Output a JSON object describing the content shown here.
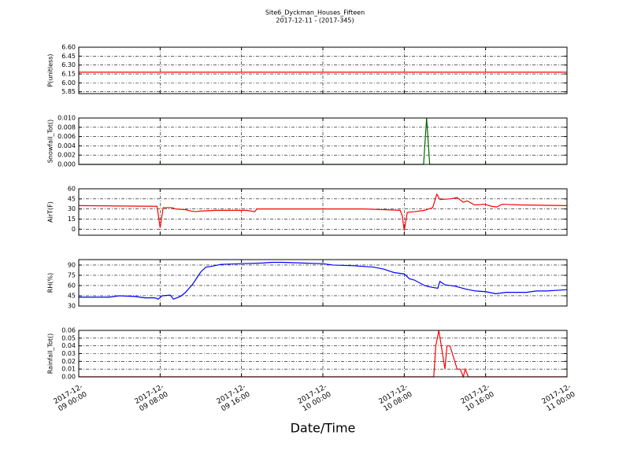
{
  "chart_data": [
    {
      "type": "line",
      "title": "Site6_Dyckman_Houses_Fifteen",
      "subtitle": "2017-12-11 - (2017-345)",
      "ylabel": "P(unitless)",
      "color": "#ff0000",
      "grid": true,
      "x": [
        "2017-12-09 00:00",
        "2017-12-11 00:00"
      ],
      "values": [
        6.18,
        6.18
      ],
      "ylim": [
        5.82,
        6.6
      ],
      "yticks": [
        {
          "value": 5.85,
          "label": "5.85"
        },
        {
          "value": 6.0,
          "label": "6.00"
        },
        {
          "value": 6.15,
          "label": "6.15"
        },
        {
          "value": 6.3,
          "label": "6.30"
        },
        {
          "value": 6.45,
          "label": "6.45"
        },
        {
          "value": 6.6,
          "label": "6.60"
        }
      ]
    },
    {
      "type": "line",
      "ylabel": "Snowfall_Tot()",
      "color": "#006400",
      "grid": true,
      "x": [
        "2017-12-09 00:00",
        "2017-12-10 09:54",
        "2017-12-10 10:12",
        "2017-12-10 10:30",
        "2017-12-11 00:00"
      ],
      "values": [
        0,
        0,
        0.01,
        0,
        0
      ],
      "ylim": [
        0,
        0.01
      ],
      "yticks": [
        {
          "value": 0,
          "label": "0.000"
        },
        0.002,
        0.004,
        0.006,
        0.008,
        {
          "value": 0.01,
          "label": "0.010"
        }
      ]
    },
    {
      "type": "line",
      "ylabel": "AirT(F)",
      "color": "#ff0000",
      "grid": true,
      "x": [
        "2017-12-09 00:00",
        "2017-12-09 07:42",
        "2017-12-09 08:00",
        "2017-12-09 08:18",
        "2017-12-09 09:12",
        "2017-12-09 09:30",
        "2017-12-09 10:30",
        "2017-12-09 11:00",
        "2017-12-09 11:30",
        "2017-12-09 12:00",
        "2017-12-09 13:30",
        "2017-12-09 15:00",
        "2017-12-09 16:30",
        "2017-12-09 17:18",
        "2017-12-09 17:30",
        "2017-12-09 20:00",
        "2017-12-10 00:00",
        "2017-12-10 04:00",
        "2017-12-10 06:00",
        "2017-12-10 07:36",
        "2017-12-10 07:48",
        "2017-12-10 08:00",
        "2017-12-10 08:18",
        "2017-12-10 09:00",
        "2017-12-10 10:00",
        "2017-12-10 10:48",
        "2017-12-10 11:12",
        "2017-12-10 11:30",
        "2017-12-10 12:30",
        "2017-12-10 13:12",
        "2017-12-10 13:48",
        "2017-12-10 14:12",
        "2017-12-10 14:54",
        "2017-12-10 15:54",
        "2017-12-10 16:36",
        "2017-12-10 17:06",
        "2017-12-10 17:36",
        "2017-12-10 19:24",
        "2017-12-11 00:00"
      ],
      "values": [
        35,
        34,
        2,
        32,
        32,
        30,
        29,
        27,
        26,
        27,
        28,
        28,
        28,
        26,
        30,
        30,
        30,
        30,
        29,
        28,
        20,
        -2,
        25,
        26,
        28,
        32,
        52,
        44,
        45,
        47,
        40,
        42,
        36,
        37,
        34,
        33,
        37,
        36,
        35
      ],
      "ylim": [
        -9,
        60
      ],
      "yticks": [
        0,
        15,
        30,
        45,
        60
      ]
    },
    {
      "type": "line",
      "ylabel": "RH(%)",
      "color": "#0000ff",
      "grid": true,
      "x": [
        "2017-12-09 00:00",
        "2017-12-09 03:00",
        "2017-12-09 04:00",
        "2017-12-09 05:30",
        "2017-12-09 06:30",
        "2017-12-09 07:30",
        "2017-12-09 07:48",
        "2017-12-09 08:12",
        "2017-12-09 09:00",
        "2017-12-09 09:18",
        "2017-12-09 10:00",
        "2017-12-09 10:30",
        "2017-12-09 11:12",
        "2017-12-09 12:00",
        "2017-12-09 12:30",
        "2017-12-09 13:00",
        "2017-12-09 14:00",
        "2017-12-09 16:00",
        "2017-12-09 18:00",
        "2017-12-09 19:00",
        "2017-12-09 20:00",
        "2017-12-09 22:00",
        "2017-12-10 00:00",
        "2017-12-10 01:00",
        "2017-12-10 03:00",
        "2017-12-10 05:00",
        "2017-12-10 06:00",
        "2017-12-10 07:00",
        "2017-12-10 08:00",
        "2017-12-10 08:30",
        "2017-12-10 09:00",
        "2017-12-10 10:00",
        "2017-12-10 10:30",
        "2017-12-10 11:18",
        "2017-12-10 11:30",
        "2017-12-10 12:00",
        "2017-12-10 13:00",
        "2017-12-10 14:00",
        "2017-12-10 15:00",
        "2017-12-10 16:00",
        "2017-12-10 17:00",
        "2017-12-10 18:00",
        "2017-12-10 20:00",
        "2017-12-10 21:00",
        "2017-12-10 22:00",
        "2017-12-10 23:00",
        "2017-12-11 00:00"
      ],
      "values": [
        43,
        43,
        45,
        44,
        42,
        42,
        40,
        45,
        46,
        40,
        44,
        50,
        62,
        80,
        87,
        88,
        91,
        92,
        93,
        94,
        94,
        93,
        92,
        90,
        89,
        87,
        84,
        79,
        77,
        70,
        68,
        60,
        58,
        56,
        66,
        61,
        59,
        55,
        52,
        51,
        48,
        50,
        50,
        52,
        52,
        53,
        54
      ],
      "ylim": [
        30,
        98
      ],
      "yticks": [
        30,
        45,
        60,
        75,
        90
      ]
    },
    {
      "type": "line",
      "ylabel": "Rainfall_Tot()",
      "xlabel": "Date/Time",
      "color": "#ff0000",
      "grid": true,
      "x": [
        "2017-12-09 00:00",
        "2017-12-10 10:54",
        "2017-12-10 11:06",
        "2017-12-10 11:24",
        "2017-12-10 12:00",
        "2017-12-10 12:12",
        "2017-12-10 12:30",
        "2017-12-10 13:12",
        "2017-12-10 13:30",
        "2017-12-10 13:48",
        "2017-12-10 14:00",
        "2017-12-10 14:18",
        "2017-12-11 00:00"
      ],
      "values": [
        0,
        0,
        0.04,
        0.06,
        0.01,
        0.04,
        0.04,
        0.01,
        0.01,
        0,
        0.01,
        0,
        0
      ],
      "ylim": [
        0,
        0.06
      ],
      "yticks": [
        {
          "value": 0,
          "label": "0.00"
        },
        0.01,
        0.02,
        0.03,
        0.04,
        0.05,
        0.06
      ],
      "xlim": [
        "2017-12-09 00:00",
        "2017-12-11 00:00"
      ],
      "xticks": [
        "2017-12-09 00:00",
        "2017-12-09 08:00",
        "2017-12-09 16:00",
        "2017-12-10 00:00",
        "2017-12-10 08:00",
        "2017-12-10 16:00",
        "2017-12-11 00:00"
      ]
    }
  ]
}
